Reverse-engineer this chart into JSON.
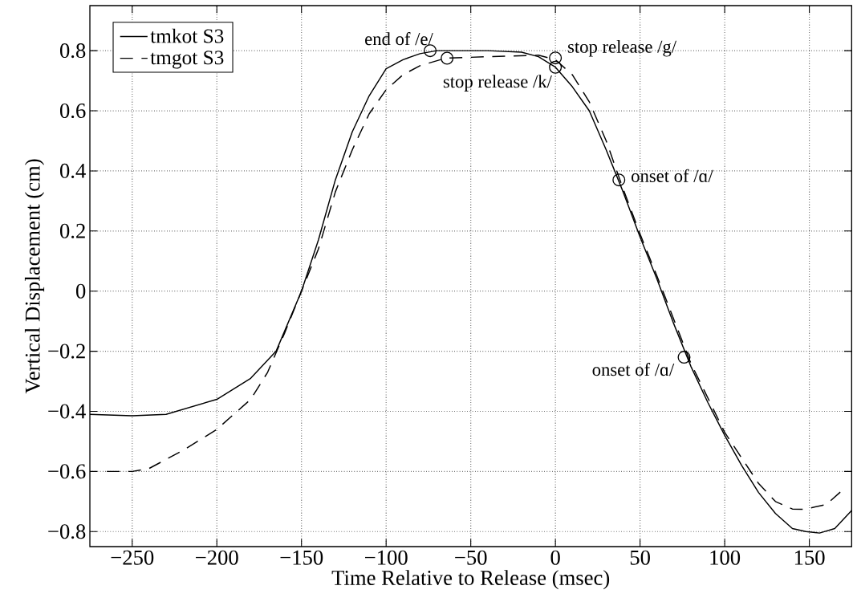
{
  "chart_data": {
    "type": "line",
    "xlabel": "Time Relative to Release (msec)",
    "ylabel": "Vertical Displacement (cm)",
    "xlim": [
      -275,
      175
    ],
    "ylim": [
      -0.85,
      0.95
    ],
    "xticks": [
      {
        "value": -250,
        "label": "−250"
      },
      {
        "value": -200,
        "label": "−200"
      },
      {
        "value": -150,
        "label": "−150"
      },
      {
        "value": -100,
        "label": "−100"
      },
      {
        "value": -50,
        "label": "−50"
      },
      0,
      50,
      100,
      150
    ],
    "yticks": [
      {
        "value": -0.8,
        "label": "−0.8"
      },
      {
        "value": -0.6,
        "label": "−0.6"
      },
      {
        "value": -0.4,
        "label": "−0.4"
      },
      {
        "value": -0.2,
        "label": "−0.2"
      },
      0,
      0.2,
      0.4,
      0.6,
      0.8
    ],
    "grid": true,
    "legend": "top left",
    "series": [
      {
        "name": "tmkot S3",
        "color": "#000000",
        "line_style": "solid",
        "x": [
          -275,
          -250,
          -230,
          -200,
          -180,
          -165,
          -150,
          -140,
          -130,
          -120,
          -110,
          -100,
          -90,
          -80,
          -70,
          -40,
          -20,
          -10,
          0,
          10,
          20,
          30,
          40,
          50,
          60,
          70,
          80,
          90,
          100,
          110,
          120,
          130,
          140,
          148,
          156,
          165,
          175
        ],
        "values": [
          -0.41,
          -0.415,
          -0.41,
          -0.36,
          -0.29,
          -0.2,
          0.0,
          0.17,
          0.37,
          0.53,
          0.65,
          0.74,
          0.77,
          0.79,
          0.8,
          0.8,
          0.795,
          0.78,
          0.745,
          0.68,
          0.6,
          0.47,
          0.33,
          0.18,
          0.04,
          -0.11,
          -0.25,
          -0.37,
          -0.48,
          -0.58,
          -0.67,
          -0.74,
          -0.79,
          -0.8,
          -0.805,
          -0.79,
          -0.73
        ]
      },
      {
        "name": "tmgot S3",
        "color": "#000000",
        "line_style": "dashed",
        "x": [
          -265,
          -250,
          -240,
          -220,
          -200,
          -180,
          -170,
          -160,
          -150,
          -140,
          -130,
          -120,
          -110,
          -100,
          -90,
          -80,
          -65,
          -40,
          -10,
          0,
          10,
          20,
          30,
          40,
          50,
          60,
          80,
          100,
          120,
          130,
          140,
          147,
          160,
          170
        ],
        "values": [
          -0.6,
          -0.6,
          -0.59,
          -0.53,
          -0.46,
          -0.36,
          -0.27,
          -0.14,
          0.0,
          0.14,
          0.33,
          0.47,
          0.59,
          0.67,
          0.72,
          0.75,
          0.775,
          0.78,
          0.785,
          0.77,
          0.72,
          0.63,
          0.5,
          0.34,
          0.19,
          0.05,
          -0.24,
          -0.47,
          -0.64,
          -0.7,
          -0.725,
          -0.726,
          -0.71,
          -0.66
        ]
      },
      {
        "type": "scatter",
        "marker": "circle",
        "color": "#000000",
        "x": [
          -74,
          0,
          37.5,
          76
        ],
        "values": [
          0.8,
          0.745,
          0.37,
          -0.22
        ]
      },
      {
        "type": "scatter",
        "marker": "circle",
        "color": "#000000",
        "x": [
          -64,
          0
        ],
        "values": [
          0.775,
          0.776
        ]
      }
    ],
    "annotations": [
      {
        "text": "end of /e/",
        "x": -74,
        "y": 0.8
      },
      {
        "text": "stop release /g/",
        "x": 0,
        "y": 0.776
      },
      {
        "text": "stop release /k/",
        "x": 0,
        "y": 0.745
      },
      {
        "text": "onset of /ɑ/",
        "x": 37.5,
        "y": 0.37
      },
      {
        "text": "onset of /ɑ/",
        "x": 76,
        "y": -0.22
      }
    ]
  }
}
